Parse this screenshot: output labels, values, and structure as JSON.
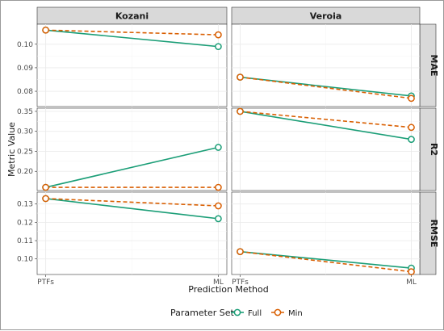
{
  "chart_data": {
    "type": "line",
    "xlabel": "Prediction Method",
    "ylabel": "Metric Value",
    "categories": [
      "PTFs",
      "ML"
    ],
    "column_facets": [
      "Kozani",
      "Veroia"
    ],
    "row_facets": [
      "MAE",
      "R2",
      "RMSE"
    ],
    "row_ranges": {
      "MAE": {
        "ylim": [
          0.0735,
          0.1085
        ],
        "ticks": [
          0.08,
          0.09,
          0.1
        ],
        "tick_labels": [
          "0.08",
          "0.09",
          "0.10"
        ]
      },
      "R2": {
        "ylim": [
          0.152,
          0.358
        ],
        "ticks": [
          0.2,
          0.25,
          0.3,
          0.35
        ],
        "tick_labels": [
          "0.20",
          "0.25",
          "0.30",
          "0.35"
        ]
      },
      "RMSE": {
        "ylim": [
          0.0915,
          0.1365
        ],
        "ticks": [
          0.1,
          0.11,
          0.12,
          0.13
        ],
        "tick_labels": [
          "0.10",
          "0.11",
          "0.12",
          "0.13"
        ]
      }
    },
    "legend": {
      "title": "Parameter Set",
      "position": "bottom",
      "entries": [
        {
          "name": "Full",
          "color": "#1b9e77",
          "line": "solid"
        },
        {
          "name": "Min",
          "color": "#d95f02",
          "line": "dashed"
        }
      ]
    },
    "grid": true,
    "panels": [
      {
        "column": "Kozani",
        "row": "MAE",
        "series": [
          {
            "name": "Full",
            "values": [
              0.106,
              0.099
            ]
          },
          {
            "name": "Min",
            "values": [
              0.106,
              0.104
            ]
          }
        ]
      },
      {
        "column": "Veroia",
        "row": "MAE",
        "series": [
          {
            "name": "Full",
            "values": [
              0.086,
              0.078
            ]
          },
          {
            "name": "Min",
            "values": [
              0.086,
              0.077
            ]
          }
        ]
      },
      {
        "column": "Kozani",
        "row": "R2",
        "series": [
          {
            "name": "Full",
            "values": [
              0.16,
              0.26
            ]
          },
          {
            "name": "Min",
            "values": [
              0.16,
              0.16
            ]
          }
        ]
      },
      {
        "column": "Veroia",
        "row": "R2",
        "series": [
          {
            "name": "Full",
            "values": [
              0.35,
              0.28
            ]
          },
          {
            "name": "Min",
            "values": [
              0.35,
              0.31
            ]
          }
        ]
      },
      {
        "column": "Kozani",
        "row": "RMSE",
        "series": [
          {
            "name": "Full",
            "values": [
              0.133,
              0.122
            ]
          },
          {
            "name": "Min",
            "values": [
              0.133,
              0.129
            ]
          }
        ]
      },
      {
        "column": "Veroia",
        "row": "RMSE",
        "series": [
          {
            "name": "Full",
            "values": [
              0.104,
              0.095
            ]
          },
          {
            "name": "Min",
            "values": [
              0.104,
              0.093
            ]
          }
        ]
      }
    ]
  }
}
